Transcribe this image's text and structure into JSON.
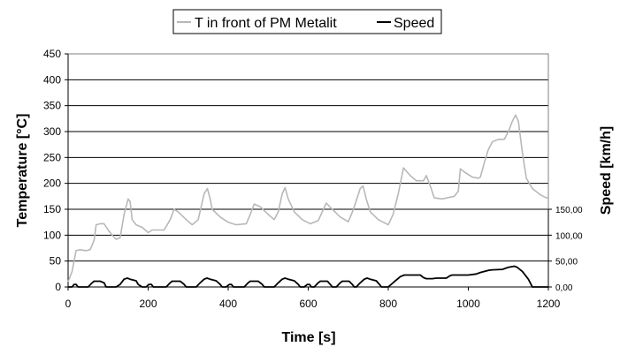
{
  "chart_data": {
    "type": "line",
    "xlabel": "Time [s]",
    "ylabel": "Temperature [°C]",
    "y2label": "Speed [km/h]",
    "xlim": [
      0,
      1200
    ],
    "ylim": [
      0,
      450
    ],
    "y2lim": [
      0,
      150
    ],
    "x_ticks": [
      "0",
      "200",
      "400",
      "600",
      "800",
      "1000",
      "1200"
    ],
    "y_ticks": [
      "0",
      "50",
      "100",
      "150",
      "200",
      "250",
      "300",
      "350",
      "400",
      "450"
    ],
    "y2_ticks": [
      "0,00",
      "50,00",
      "100,00",
      "150,00"
    ],
    "grid": true,
    "legend_position": "top-center",
    "series": [
      {
        "name": "T in front of PM Metalit",
        "axis": "left",
        "color": "#b8b8b8",
        "points": [
          [
            0,
            10
          ],
          [
            10,
            30
          ],
          [
            20,
            70
          ],
          [
            30,
            72
          ],
          [
            45,
            70
          ],
          [
            55,
            72
          ],
          [
            65,
            90
          ],
          [
            70,
            120
          ],
          [
            80,
            122
          ],
          [
            90,
            122
          ],
          [
            100,
            110
          ],
          [
            110,
            100
          ],
          [
            120,
            92
          ],
          [
            130,
            95
          ],
          [
            140,
            140
          ],
          [
            150,
            170
          ],
          [
            155,
            165
          ],
          [
            160,
            130
          ],
          [
            170,
            120
          ],
          [
            185,
            115
          ],
          [
            200,
            105
          ],
          [
            210,
            110
          ],
          [
            240,
            110
          ],
          [
            255,
            130
          ],
          [
            265,
            150
          ],
          [
            275,
            145
          ],
          [
            295,
            130
          ],
          [
            310,
            120
          ],
          [
            325,
            130
          ],
          [
            340,
            180
          ],
          [
            348,
            190
          ],
          [
            355,
            170
          ],
          [
            360,
            150
          ],
          [
            380,
            135
          ],
          [
            400,
            125
          ],
          [
            420,
            120
          ],
          [
            445,
            122
          ],
          [
            455,
            140
          ],
          [
            465,
            160
          ],
          [
            480,
            155
          ],
          [
            500,
            140
          ],
          [
            515,
            130
          ],
          [
            525,
            145
          ],
          [
            535,
            180
          ],
          [
            542,
            192
          ],
          [
            550,
            170
          ],
          [
            565,
            145
          ],
          [
            585,
            130
          ],
          [
            605,
            122
          ],
          [
            625,
            128
          ],
          [
            638,
            150
          ],
          [
            645,
            162
          ],
          [
            660,
            150
          ],
          [
            680,
            135
          ],
          [
            700,
            126
          ],
          [
            712,
            148
          ],
          [
            730,
            190
          ],
          [
            737,
            195
          ],
          [
            745,
            170
          ],
          [
            755,
            145
          ],
          [
            775,
            130
          ],
          [
            800,
            120
          ],
          [
            812,
            140
          ],
          [
            825,
            180
          ],
          [
            838,
            230
          ],
          [
            855,
            215
          ],
          [
            870,
            205
          ],
          [
            888,
            205
          ],
          [
            895,
            215
          ],
          [
            905,
            195
          ],
          [
            915,
            172
          ],
          [
            935,
            170
          ],
          [
            965,
            175
          ],
          [
            975,
            185
          ],
          [
            980,
            228
          ],
          [
            990,
            222
          ],
          [
            1010,
            212
          ],
          [
            1025,
            210
          ],
          [
            1030,
            212
          ],
          [
            1040,
            240
          ],
          [
            1050,
            265
          ],
          [
            1060,
            280
          ],
          [
            1075,
            285
          ],
          [
            1090,
            285
          ],
          [
            1100,
            300
          ],
          [
            1110,
            320
          ],
          [
            1118,
            332
          ],
          [
            1125,
            320
          ],
          [
            1135,
            260
          ],
          [
            1145,
            210
          ],
          [
            1160,
            190
          ],
          [
            1180,
            178
          ],
          [
            1195,
            172
          ],
          [
            1200,
            172
          ]
        ]
      },
      {
        "name": "Speed",
        "axis": "right",
        "color": "#000000",
        "points": [
          [
            0,
            0
          ],
          [
            10,
            0
          ],
          [
            15,
            5
          ],
          [
            20,
            5
          ],
          [
            25,
            0
          ],
          [
            50,
            0
          ],
          [
            60,
            8
          ],
          [
            65,
            11
          ],
          [
            80,
            11
          ],
          [
            90,
            8
          ],
          [
            95,
            0
          ],
          [
            120,
            0
          ],
          [
            130,
            5
          ],
          [
            140,
            15
          ],
          [
            148,
            17
          ],
          [
            155,
            15
          ],
          [
            170,
            12
          ],
          [
            175,
            5
          ],
          [
            185,
            0
          ],
          [
            195,
            0
          ],
          [
            202,
            5
          ],
          [
            208,
            5
          ],
          [
            213,
            0
          ],
          [
            245,
            0
          ],
          [
            255,
            8
          ],
          [
            260,
            11
          ],
          [
            280,
            11
          ],
          [
            290,
            5
          ],
          [
            295,
            0
          ],
          [
            320,
            0
          ],
          [
            330,
            8
          ],
          [
            340,
            15
          ],
          [
            347,
            17
          ],
          [
            355,
            15
          ],
          [
            370,
            12
          ],
          [
            380,
            5
          ],
          [
            385,
            0
          ],
          [
            395,
            0
          ],
          [
            403,
            5
          ],
          [
            408,
            5
          ],
          [
            413,
            0
          ],
          [
            440,
            0
          ],
          [
            450,
            8
          ],
          [
            455,
            11
          ],
          [
            475,
            11
          ],
          [
            485,
            5
          ],
          [
            490,
            0
          ],
          [
            515,
            0
          ],
          [
            525,
            8
          ],
          [
            535,
            15
          ],
          [
            542,
            17
          ],
          [
            550,
            15
          ],
          [
            565,
            12
          ],
          [
            575,
            5
          ],
          [
            580,
            0
          ],
          [
            590,
            0
          ],
          [
            598,
            5
          ],
          [
            603,
            5
          ],
          [
            608,
            0
          ],
          [
            615,
            0
          ],
          [
            625,
            8
          ],
          [
            630,
            11
          ],
          [
            648,
            11
          ],
          [
            655,
            5
          ],
          [
            660,
            0
          ],
          [
            670,
            0
          ],
          [
            680,
            8
          ],
          [
            685,
            11
          ],
          [
            702,
            11
          ],
          [
            710,
            5
          ],
          [
            715,
            0
          ],
          [
            720,
            0
          ],
          [
            730,
            8
          ],
          [
            740,
            15
          ],
          [
            747,
            17
          ],
          [
            755,
            15
          ],
          [
            770,
            12
          ],
          [
            778,
            5
          ],
          [
            783,
            0
          ],
          [
            800,
            0
          ],
          [
            815,
            10
          ],
          [
            830,
            20
          ],
          [
            840,
            23
          ],
          [
            880,
            23
          ],
          [
            888,
            18
          ],
          [
            895,
            16
          ],
          [
            910,
            16
          ],
          [
            920,
            17
          ],
          [
            945,
            17
          ],
          [
            955,
            22
          ],
          [
            960,
            23
          ],
          [
            990,
            23
          ],
          [
            1000,
            23
          ],
          [
            1020,
            25
          ],
          [
            1030,
            28
          ],
          [
            1050,
            32
          ],
          [
            1060,
            33
          ],
          [
            1085,
            34
          ],
          [
            1100,
            38
          ],
          [
            1115,
            40
          ],
          [
            1122,
            38
          ],
          [
            1135,
            30
          ],
          [
            1150,
            15
          ],
          [
            1160,
            0
          ],
          [
            1200,
            0
          ]
        ]
      }
    ]
  }
}
